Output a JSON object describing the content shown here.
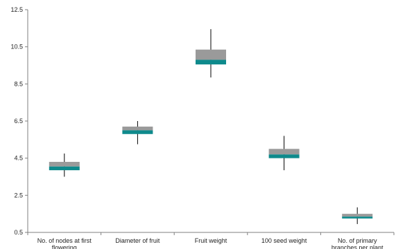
{
  "chart_data": {
    "type": "box",
    "title": "",
    "xlabel": "",
    "ylabel": "",
    "ylim": [
      0.5,
      12.5
    ],
    "yticks": [
      "0.5",
      "2.5",
      "4.5",
      "6.5",
      "8.5",
      "10.5",
      "12.5"
    ],
    "yticks_values": [
      0.5,
      2.5,
      4.5,
      6.5,
      8.5,
      10.5,
      12.5
    ],
    "categories": [
      [
        "No. of nodes at first",
        "flowering"
      ],
      [
        "Diameter of fruit"
      ],
      [
        "Fruit weight"
      ],
      [
        "100 seed weight"
      ],
      [
        "No. of primary",
        "branches per plant"
      ]
    ],
    "boxes": [
      {
        "min": 3.5,
        "q1": 3.85,
        "median": 4.05,
        "q3": 4.3,
        "max": 4.75
      },
      {
        "min": 5.25,
        "q1": 5.8,
        "median": 6.0,
        "q3": 6.2,
        "max": 6.5
      },
      {
        "min": 8.85,
        "q1": 9.55,
        "median": 9.8,
        "q3": 10.35,
        "max": 11.45
      },
      {
        "min": 3.85,
        "q1": 4.5,
        "median": 4.7,
        "q3": 5.0,
        "max": 5.7
      },
      {
        "min": 0.95,
        "q1": 1.25,
        "median": 1.35,
        "q3": 1.5,
        "max": 1.85
      }
    ],
    "colors": {
      "lower": "#0e8a8c",
      "upper": "#9a9a9a",
      "whisker": "#000000",
      "axis": "#7f7f7f"
    },
    "grid": false,
    "legend": "none"
  }
}
